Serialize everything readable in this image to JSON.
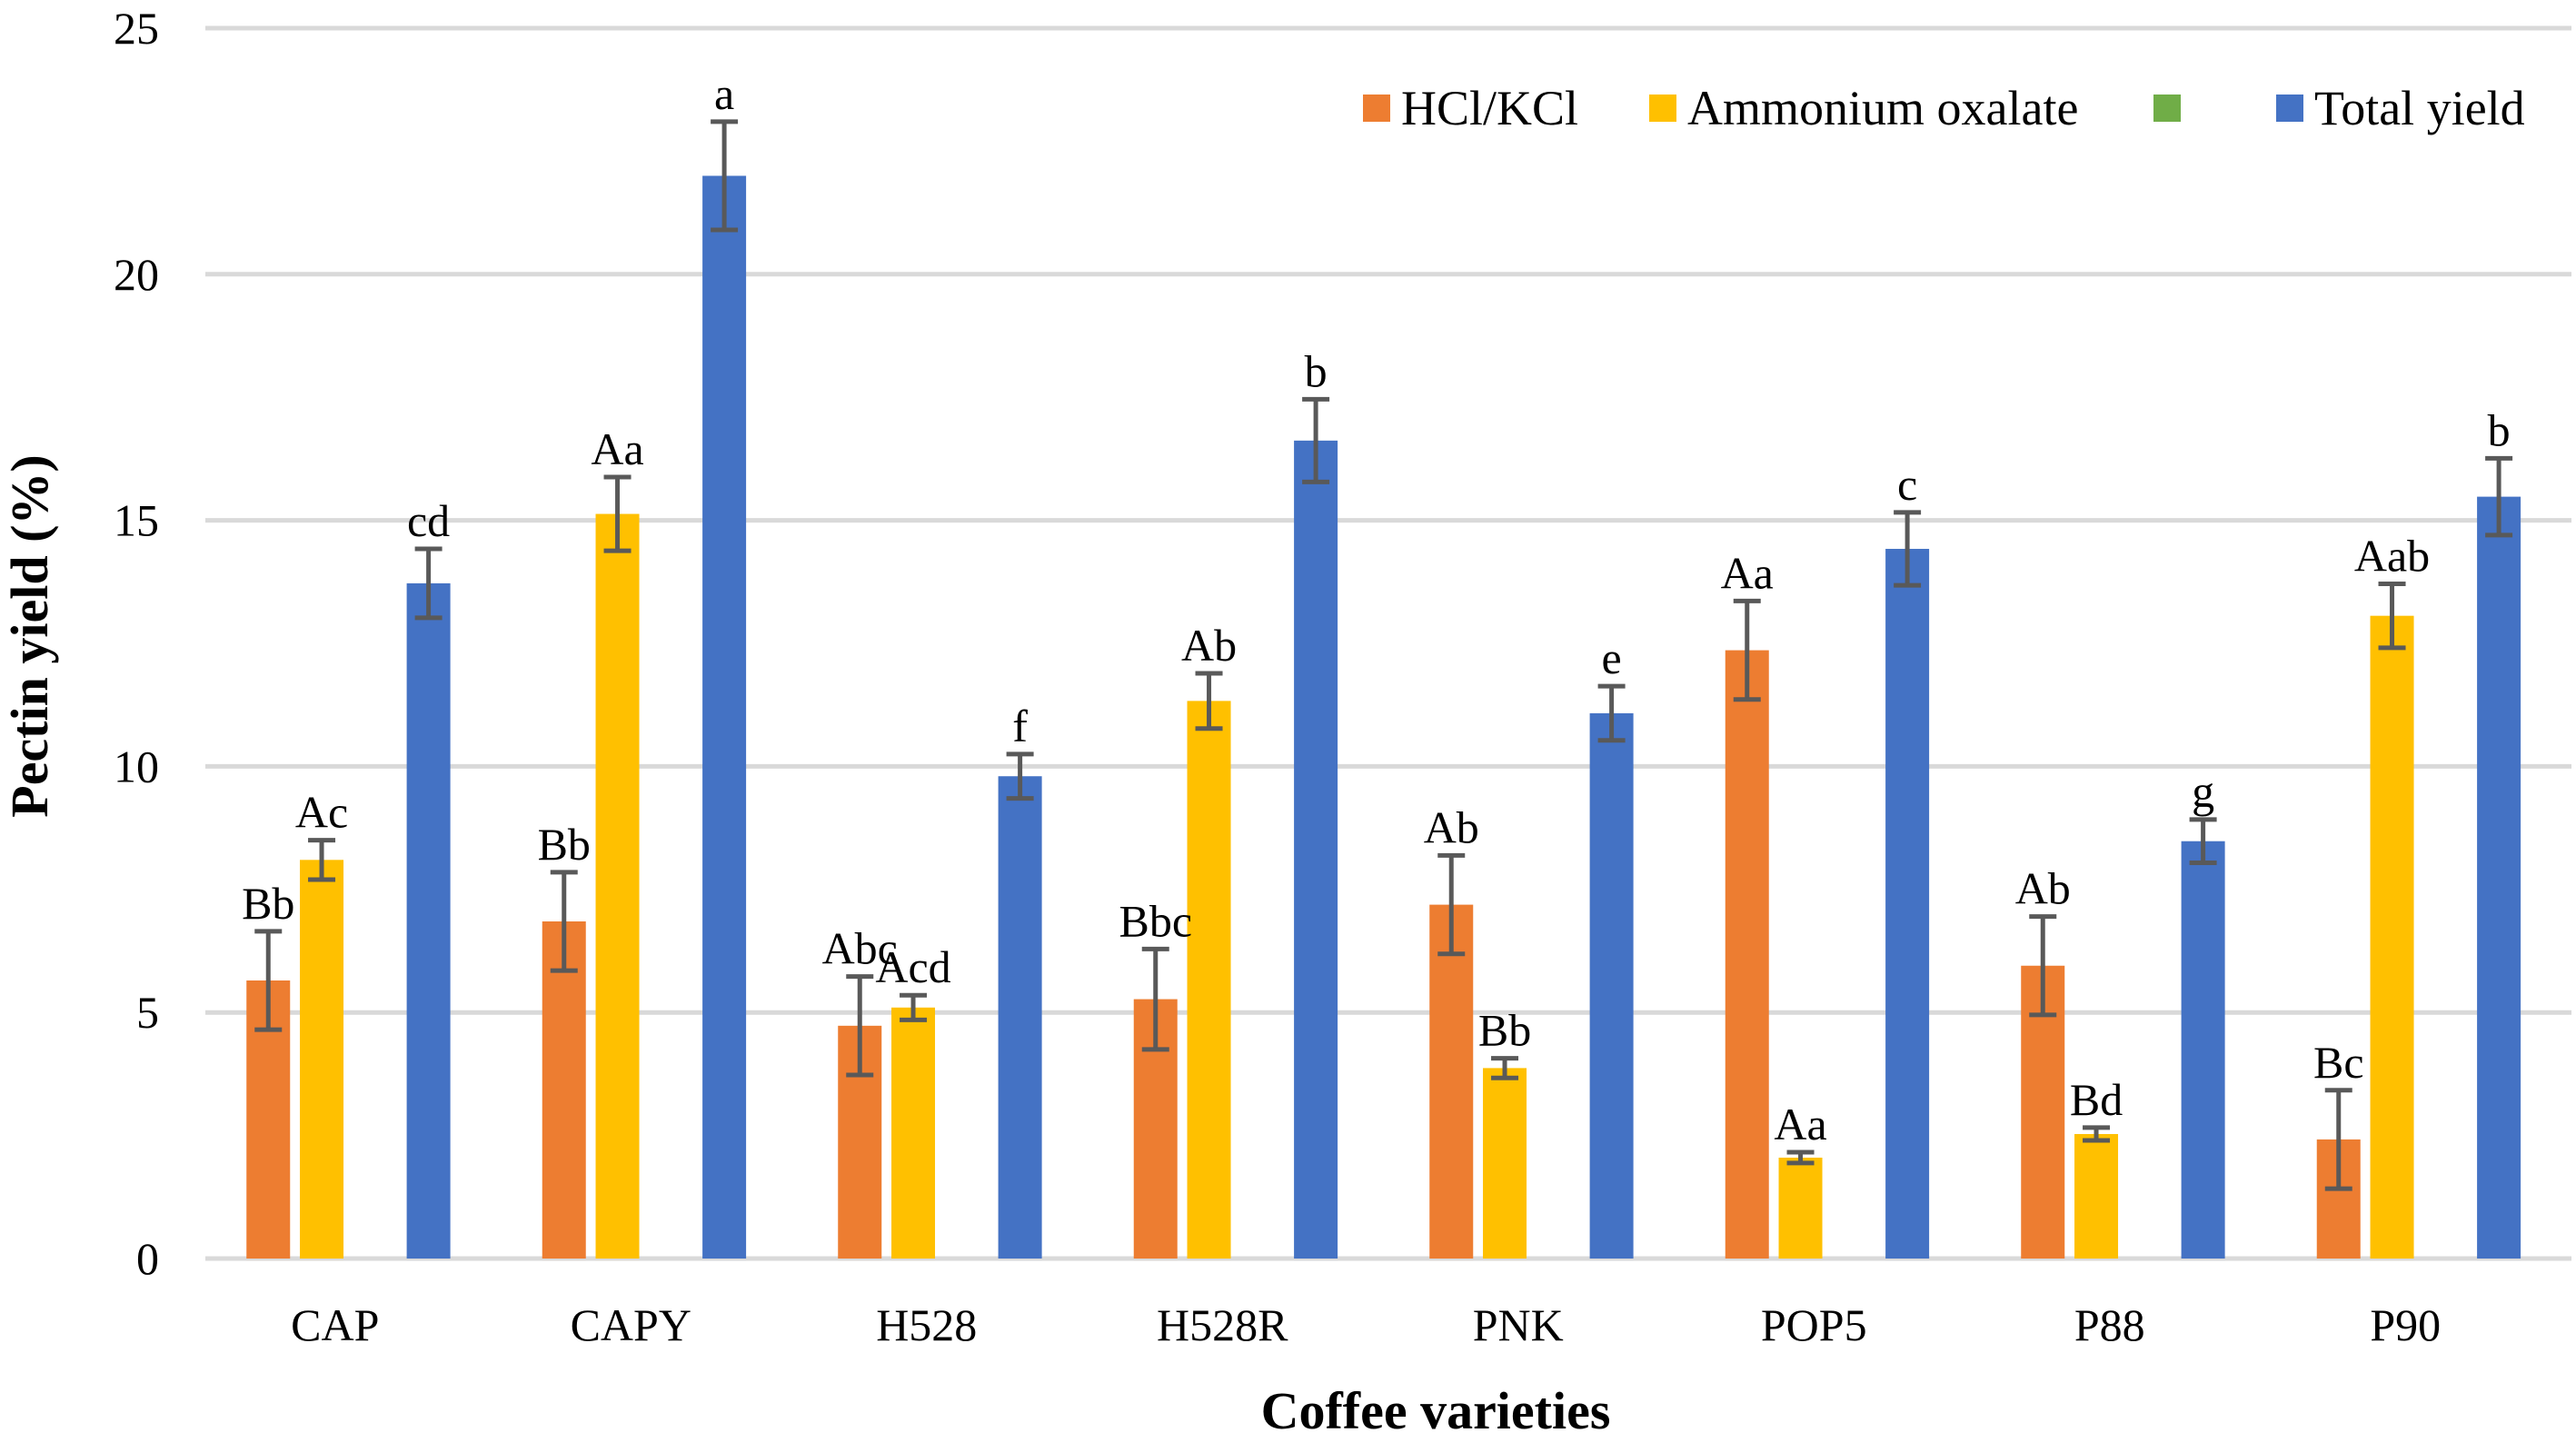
{
  "chart_data": {
    "type": "bar",
    "title": "",
    "xlabel": "Coffee varieties",
    "ylabel": "Pectin yield (%)",
    "ylim": [
      0,
      25
    ],
    "yticks": [
      0,
      5,
      10,
      15,
      20,
      25
    ],
    "grid": true,
    "legend_position": "top-right",
    "categories": [
      "CAP",
      "CAPY",
      "H528",
      "H528R",
      "PNK",
      "POP5",
      "P88",
      "P90"
    ],
    "series": [
      {
        "name": "HCl/KCl",
        "color": "#ED7D31",
        "values": [
          5.65,
          6.85,
          4.73,
          5.27,
          7.19,
          12.36,
          5.95,
          2.42
        ],
        "errors": [
          1.0,
          1.0,
          1.0,
          1.02,
          1.0,
          1.0,
          1.0,
          1.0
        ],
        "labels": [
          "Bb",
          "Bb",
          "Abc",
          "Bbc",
          "Ab",
          "Aa",
          "Ab",
          "Bc"
        ]
      },
      {
        "name": "Ammonium oxalate",
        "color": "#FFC000",
        "values": [
          8.1,
          15.13,
          5.1,
          11.33,
          3.87,
          2.05,
          2.53,
          13.06
        ],
        "errors": [
          0.4,
          0.75,
          0.25,
          0.56,
          0.2,
          0.11,
          0.13,
          0.65
        ],
        "labels": [
          "Ac",
          "Aa",
          "Acd",
          "Ab",
          "Bb",
          "Aa",
          "Bd",
          "Aab"
        ]
      },
      {
        "name": "",
        "color": "#70AD47",
        "values": [
          null,
          null,
          null,
          null,
          null,
          null,
          null,
          null
        ],
        "errors": [],
        "labels": []
      },
      {
        "name": "Total yield",
        "color": "#4472C4",
        "values": [
          13.72,
          22.0,
          9.8,
          16.62,
          11.08,
          14.42,
          8.48,
          15.48
        ],
        "errors": [
          0.7,
          1.1,
          0.45,
          0.84,
          0.55,
          0.74,
          0.44,
          0.78
        ],
        "labels": [
          "cd",
          "a",
          "f",
          "b",
          "e",
          "c",
          "g",
          "b"
        ]
      }
    ]
  },
  "legend": {
    "items": [
      {
        "label": "HCl/KCl",
        "color": "#ED7D31"
      },
      {
        "label": "Ammonium oxalate",
        "color": "#FFC000"
      },
      {
        "label": "",
        "color": "#70AD47"
      },
      {
        "label": "Total yield",
        "color": "#4472C4"
      }
    ]
  },
  "colors": {
    "gridline": "#D9D9D9",
    "error_bar": "#595959"
  }
}
